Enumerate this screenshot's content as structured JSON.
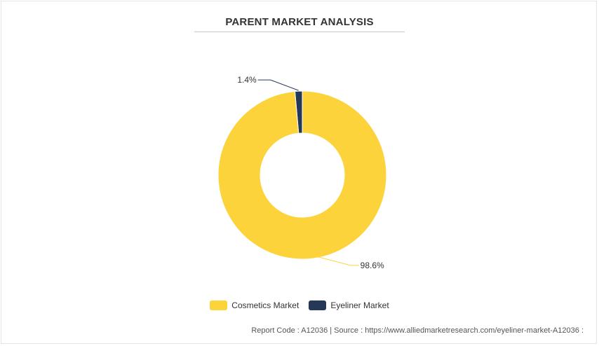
{
  "title": "PARENT MARKET ANALYSIS",
  "chart_data": {
    "type": "pie",
    "donut": true,
    "title": "PARENT MARKET ANALYSIS",
    "categories": [
      "Cosmetics Market",
      "Eyeliner Market"
    ],
    "values": [
      98.6,
      1.4
    ],
    "labels": [
      "98.6%",
      "1.4%"
    ],
    "colors": [
      "#fdd33c",
      "#253858"
    ],
    "legend_position": "bottom"
  },
  "legend": {
    "items": [
      {
        "label": "Cosmetics Market",
        "color": "#fdd33c"
      },
      {
        "label": "Eyeliner Market",
        "color": "#253858"
      }
    ]
  },
  "footer": {
    "text": "Report Code : A12036  |  Source : https://www.alliedmarketresearch.com/eyeliner-market-A12036 :"
  }
}
